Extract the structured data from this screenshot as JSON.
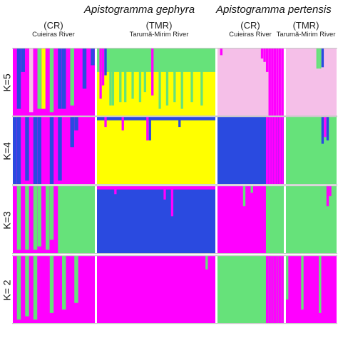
{
  "header": {
    "species_left": "Apistogramma gephyra",
    "species_right": "Apistogramma pertensis",
    "groups": [
      {
        "code": "(CR)",
        "river": "Cuieiras River"
      },
      {
        "code": "(TMR)",
        "river": "Tarumã-Mirim River"
      },
      {
        "code": "(CR)",
        "river": "Cuieiras River"
      },
      {
        "code": "(TMR)",
        "river": "Tarumã-Mirim River"
      }
    ]
  },
  "colors": {
    "magenta": "#ff00ff",
    "green": "#66e27a",
    "yellow": "#ffff00",
    "blue": "#2a4ae0",
    "pink": "#f5bfe8",
    "separator": "#c9c9c9"
  },
  "chart_data": {
    "type": "bar",
    "panels": [
      {
        "k_label": "K=5",
        "groups": [
          {
            "n": 20,
            "base": "magenta",
            "spikes": [
              {
                "i": 1,
                "color": "blue",
                "frac": 0.9
              },
              {
                "i": 2,
                "color": "blue",
                "frac": 0.35
              },
              {
                "i": 4,
                "color": "pink",
                "frac": 0.95
              },
              {
                "i": 6,
                "color": "green",
                "frac": 0.9
              },
              {
                "i": 7,
                "color": "yellow",
                "frac": 0.9
              },
              {
                "i": 9,
                "color": "green",
                "frac": 0.95
              },
              {
                "i": 11,
                "color": "blue",
                "frac": 0.9
              },
              {
                "i": 12,
                "color": "blue",
                "frac": 0.9
              },
              {
                "i": 14,
                "color": "green",
                "frac": 0.85
              },
              {
                "i": 17,
                "color": "blue",
                "frac": 0.6
              },
              {
                "i": 19,
                "color": "blue",
                "frac": 0.25
              }
            ]
          },
          {
            "n": 48,
            "base": "yellow",
            "top": {
              "color": "green",
              "frac": 0.35
            },
            "spikes": [
              {
                "i": 1,
                "color": "magenta",
                "frac": 0.75
              },
              {
                "i": 2,
                "color": "magenta",
                "frac": 0.55
              },
              {
                "i": 3,
                "color": "blue",
                "frac": 0.4
              },
              {
                "i": 5,
                "color": "green",
                "frac": 0.85
              },
              {
                "i": 6,
                "color": "green",
                "frac": 0.85
              },
              {
                "i": 9,
                "color": "green",
                "frac": 0.8
              },
              {
                "i": 11,
                "color": "green",
                "frac": 0.8
              },
              {
                "i": 14,
                "color": "green",
                "frac": 0.75
              },
              {
                "i": 17,
                "color": "green",
                "frac": 0.8
              },
              {
                "i": 19,
                "color": "green",
                "frac": 0.65
              },
              {
                "i": 22,
                "color": "magenta",
                "frac": 0.7
              },
              {
                "i": 25,
                "color": "green",
                "frac": 0.9
              },
              {
                "i": 28,
                "color": "green",
                "frac": 0.85
              },
              {
                "i": 31,
                "color": "green",
                "frac": 0.8
              },
              {
                "i": 34,
                "color": "green",
                "frac": 0.9
              },
              {
                "i": 38,
                "color": "green",
                "frac": 0.8
              },
              {
                "i": 42,
                "color": "green",
                "frac": 0.85
              }
            ]
          },
          {
            "n": 26,
            "base": "pink",
            "spikes": [
              {
                "i": 1,
                "color": "magenta",
                "frac": 0.1
              },
              {
                "i": 17,
                "color": "magenta",
                "frac": 0.15
              },
              {
                "i": 18,
                "color": "magenta",
                "frac": 0.2
              },
              {
                "i": 19,
                "color": "magenta",
                "frac": 0.35
              },
              {
                "i": 20,
                "color": "magenta",
                "frac": 1.0
              },
              {
                "i": 21,
                "color": "magenta",
                "frac": 1.0
              },
              {
                "i": 22,
                "color": "magenta",
                "frac": 1.0
              },
              {
                "i": 23,
                "color": "magenta",
                "frac": 1.0
              },
              {
                "i": 24,
                "color": "magenta",
                "frac": 1.0
              },
              {
                "i": 25,
                "color": "magenta",
                "frac": 1.0
              }
            ]
          },
          {
            "n": 20,
            "base": "pink",
            "spikes": [
              {
                "i": 12,
                "color": "green",
                "frac": 0.3
              },
              {
                "i": 13,
                "color": "green",
                "frac": 0.3
              },
              {
                "i": 14,
                "color": "blue",
                "frac": 0.28
              }
            ]
          }
        ]
      },
      {
        "k_label": "K=4",
        "groups": [
          {
            "n": 20,
            "base": "magenta",
            "spikes": [
              {
                "i": 0,
                "color": "blue",
                "frac": 1.0
              },
              {
                "i": 1,
                "color": "blue",
                "frac": 1.0
              },
              {
                "i": 3,
                "color": "blue",
                "frac": 0.95
              },
              {
                "i": 5,
                "color": "blue",
                "frac": 1.0
              },
              {
                "i": 6,
                "color": "blue",
                "frac": 1.0
              },
              {
                "i": 9,
                "color": "blue",
                "frac": 1.0
              },
              {
                "i": 11,
                "color": "blue",
                "frac": 0.95
              },
              {
                "i": 14,
                "color": "blue",
                "frac": 0.45
              },
              {
                "i": 15,
                "color": "blue",
                "frac": 0.2
              }
            ]
          },
          {
            "n": 48,
            "base": "yellow",
            "top": {
              "color": "blue",
              "frac": 0.05
            },
            "spikes": [
              {
                "i": 3,
                "color": "magenta",
                "frac": 0.15
              },
              {
                "i": 10,
                "color": "magenta",
                "frac": 0.2
              },
              {
                "i": 20,
                "color": "magenta",
                "frac": 0.35
              },
              {
                "i": 21,
                "color": "blue",
                "frac": 0.35
              },
              {
                "i": 33,
                "color": "blue",
                "frac": 0.15
              }
            ]
          },
          {
            "n": 26,
            "base": "blue",
            "spikes": [
              {
                "i": 19,
                "color": "magenta",
                "frac": 1.0
              },
              {
                "i": 20,
                "color": "magenta",
                "frac": 1.0
              },
              {
                "i": 21,
                "color": "magenta",
                "frac": 1.0
              },
              {
                "i": 22,
                "color": "magenta",
                "frac": 1.0
              },
              {
                "i": 23,
                "color": "magenta",
                "frac": 1.0
              },
              {
                "i": 24,
                "color": "magenta",
                "frac": 1.0
              },
              {
                "i": 25,
                "color": "magenta",
                "frac": 1.0
              }
            ]
          },
          {
            "n": 20,
            "base": "green",
            "spikes": [
              {
                "i": 14,
                "color": "blue",
                "frac": 0.4
              },
              {
                "i": 15,
                "color": "magenta",
                "frac": 0.3
              },
              {
                "i": 16,
                "color": "blue",
                "frac": 0.35
              }
            ]
          }
        ]
      },
      {
        "k_label": "K=3",
        "groups": [
          {
            "n": 20,
            "base": "magenta",
            "rightBlock": {
              "from": 11,
              "color": "green"
            },
            "spikes": [
              {
                "i": 1,
                "color": "green",
                "frac": 0.95
              },
              {
                "i": 3,
                "color": "green",
                "frac": 0.95
              },
              {
                "i": 5,
                "color": "green",
                "frac": 0.95
              },
              {
                "i": 6,
                "color": "green",
                "frac": 0.9
              },
              {
                "i": 8,
                "color": "green",
                "frac": 0.95
              },
              {
                "i": 9,
                "color": "green",
                "frac": 0.8
              }
            ]
          },
          {
            "n": 48,
            "base": "blue",
            "top": {
              "color": "magenta",
              "frac": 0.05
            },
            "spikes": [
              {
                "i": 7,
                "color": "magenta",
                "frac": 0.12
              },
              {
                "i": 27,
                "color": "magenta",
                "frac": 0.2
              },
              {
                "i": 30,
                "color": "magenta",
                "frac": 0.45
              }
            ]
          },
          {
            "n": 26,
            "base": "magenta",
            "rightBlock": {
              "from": 19,
              "color": "green"
            },
            "spikes": [
              {
                "i": 10,
                "color": "green",
                "frac": 0.3
              },
              {
                "i": 13,
                "color": "green",
                "frac": 0.1
              }
            ]
          },
          {
            "n": 20,
            "base": "green",
            "spikes": [
              {
                "i": 16,
                "color": "magenta",
                "frac": 0.3
              },
              {
                "i": 17,
                "color": "magenta",
                "frac": 0.15
              }
            ]
          }
        ]
      },
      {
        "k_label": "K= 2",
        "groups": [
          {
            "n": 20,
            "base": "magenta",
            "spikes": [
              {
                "i": 1,
                "color": "green",
                "frac": 0.95
              },
              {
                "i": 3,
                "color": "green",
                "frac": 0.9
              },
              {
                "i": 5,
                "color": "green",
                "frac": 0.95
              },
              {
                "i": 9,
                "color": "green",
                "frac": 0.85
              },
              {
                "i": 12,
                "color": "green",
                "frac": 0.8
              },
              {
                "i": 15,
                "color": "green",
                "frac": 0.7
              }
            ]
          },
          {
            "n": 48,
            "base": "magenta",
            "spikes": [
              {
                "i": 44,
                "color": "green",
                "frac": 0.2
              }
            ]
          },
          {
            "n": 26,
            "base": "green",
            "spikes": [
              {
                "i": 19,
                "color": "magenta",
                "frac": 1.0
              },
              {
                "i": 20,
                "color": "magenta",
                "frac": 1.0
              },
              {
                "i": 21,
                "color": "magenta",
                "frac": 1.0
              },
              {
                "i": 22,
                "color": "magenta",
                "frac": 1.0
              },
              {
                "i": 23,
                "color": "magenta",
                "frac": 1.0
              },
              {
                "i": 24,
                "color": "magenta",
                "frac": 1.0
              },
              {
                "i": 25,
                "color": "magenta",
                "frac": 1.0
              }
            ]
          },
          {
            "n": 20,
            "base": "magenta",
            "spikes": [
              {
                "i": 0,
                "color": "green",
                "frac": 0.65
              },
              {
                "i": 6,
                "color": "green",
                "frac": 0.8
              },
              {
                "i": 13,
                "color": "green",
                "frac": 0.85
              }
            ]
          }
        ]
      }
    ]
  }
}
